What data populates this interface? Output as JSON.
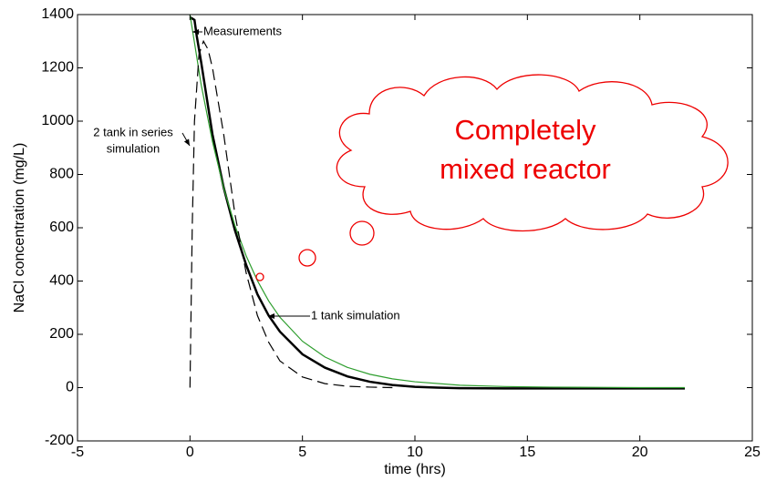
{
  "chart_data": {
    "type": "line",
    "xlabel": "time (hrs)",
    "ylabel": "NaCl concentration (mg/L)",
    "xlim": [
      -5,
      25
    ],
    "xticks": [
      -5,
      0,
      5,
      10,
      15,
      20,
      25
    ],
    "ylim": [
      -200,
      1400
    ],
    "yticks": [
      -200,
      0,
      200,
      400,
      600,
      800,
      1000,
      1200,
      1400
    ],
    "series": [
      {
        "color": "#000000",
        "dash": false,
        "width": 2.5,
        "x": [
          0,
          0.1,
          0.2,
          0.3,
          0.5,
          1,
          1.5,
          2,
          2.5,
          3,
          3.5,
          4,
          5,
          6,
          7,
          8,
          9,
          10,
          11,
          12,
          14,
          16,
          18,
          20,
          22
        ],
        "values": [
          1390,
          1385,
          1380,
          1320,
          1220,
          950,
          750,
          590,
          460,
          350,
          270,
          210,
          125,
          75,
          42,
          22,
          10,
          3,
          0,
          -2,
          -3,
          -3,
          -3,
          -3,
          -3
        ]
      },
      {
        "color": "#2e9e2e",
        "dash": false,
        "width": 1.2,
        "x": [
          0,
          0.5,
          1,
          1.5,
          2,
          2.5,
          3,
          3.5,
          4,
          5,
          6,
          7,
          8,
          9,
          10,
          12,
          14,
          16,
          18,
          20,
          22
        ],
        "values": [
          1400,
          1136,
          923,
          749,
          608,
          494,
          401,
          325,
          264,
          174,
          115,
          76,
          50,
          33,
          22,
          9,
          4,
          2,
          1,
          0,
          0
        ]
      },
      {
        "color": "#000000",
        "dash": true,
        "width": 1.2,
        "x": [
          0,
          0.1,
          0.2,
          0.4,
          0.6,
          0.8,
          1,
          1.5,
          2,
          2.5,
          3,
          3.5,
          4,
          5,
          6,
          7,
          8,
          9
        ],
        "values": [
          0,
          600,
          1000,
          1250,
          1300,
          1270,
          1200,
          950,
          650,
          430,
          270,
          170,
          100,
          40,
          15,
          5,
          2,
          0
        ]
      }
    ],
    "annotations": [
      {
        "lines": [
          "Measurements"
        ]
      },
      {
        "lines": [
          "2 tank in series",
          "simulation"
        ]
      },
      {
        "lines": [
          "1 tank simulation"
        ]
      },
      {
        "lines": [
          "Completely",
          "mixed reactor"
        ]
      }
    ]
  }
}
